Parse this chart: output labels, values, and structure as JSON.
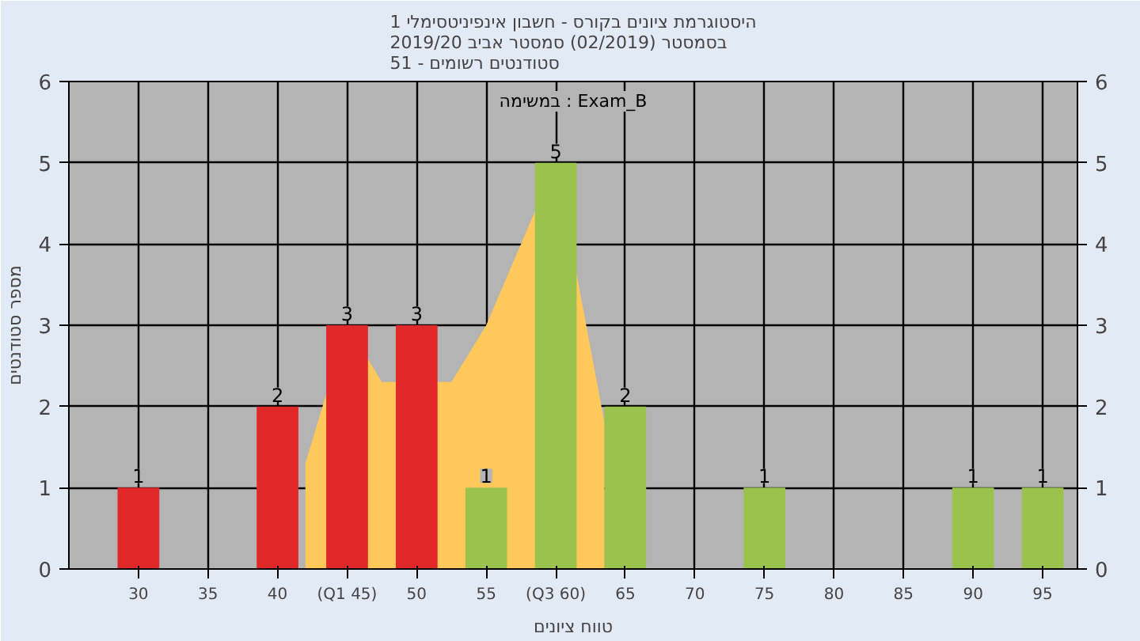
{
  "chart_data": {
    "type": "bar",
    "title": "היסטוגרמת ציונים בקורס - חשבון אינפיניטסימלי 1",
    "subtitle": "בסמסטר  (02/2019)  סמסטר אביב 2019/20\nסטודנטים רשומים - 51",
    "xlabel": "טווח ציונים",
    "ylabel": "מספר סטודנטים",
    "annotations": [
      "במשימה : Exam_B"
    ],
    "series": [
      {
        "type": "area",
        "x": [
          42,
          45,
          47.5,
          52.5,
          55,
          60,
          63.5
        ],
        "values": [
          1.3,
          3,
          2.3,
          2.3,
          3,
          5,
          1.8
        ],
        "color": "#ffc85a"
      },
      {
        "x": [
          30,
          40,
          45,
          50,
          55,
          60,
          65,
          75,
          90,
          95
        ],
        "values": [
          1,
          2,
          3,
          3,
          1,
          5,
          2,
          1,
          1,
          1
        ],
        "value_labels": [
          "1",
          "2",
          "3",
          "3",
          "1",
          "5",
          "2",
          "1",
          "1",
          "1"
        ],
        "colors": [
          "#e02828",
          "#e02828",
          "#e02828",
          "#e02828",
          "#9cc24e",
          "#9cc24e",
          "#9cc24e",
          "#9cc24e",
          "#9cc24e",
          "#9cc24e"
        ]
      }
    ],
    "xlim": [
      25,
      97.5
    ],
    "xticks": [
      30,
      35,
      40,
      {
        "value": 45,
        "label": "(Q1 45)"
      },
      50,
      55,
      {
        "value": 60,
        "label": "(Q3 60)"
      },
      65,
      70,
      75,
      80,
      85,
      90,
      95
    ],
    "ylim": [
      0,
      6
    ],
    "yticks": [
      0,
      1,
      2,
      3,
      4,
      5,
      6
    ],
    "y2lim": [
      0,
      6
    ],
    "y2ticks": [
      0,
      1,
      2,
      3,
      4,
      5,
      6
    ],
    "grid": true
  }
}
